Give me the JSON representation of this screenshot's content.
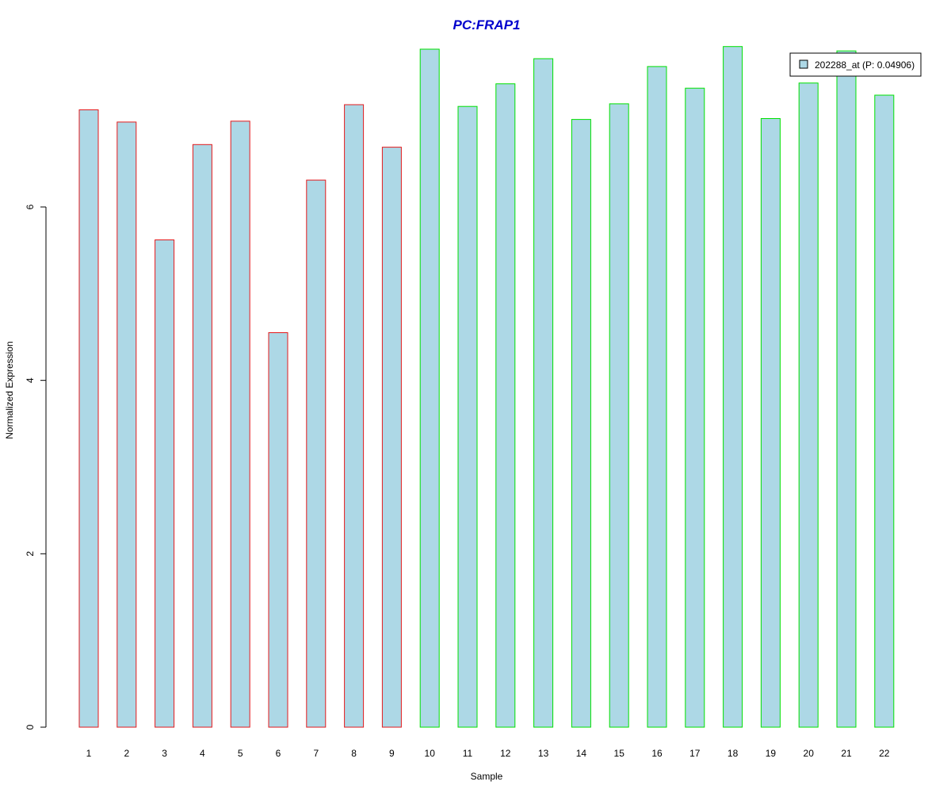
{
  "chart_data": {
    "type": "bar",
    "title": "PC:FRAP1",
    "xlabel": "Sample",
    "ylabel": "Normalized Expression",
    "ylim": [
      0,
      7.8
    ],
    "yticks": [
      0,
      2,
      4,
      6
    ],
    "categories": [
      "1",
      "2",
      "3",
      "4",
      "5",
      "6",
      "7",
      "8",
      "9",
      "10",
      "11",
      "12",
      "13",
      "14",
      "15",
      "16",
      "17",
      "18",
      "19",
      "20",
      "21",
      "22"
    ],
    "series": [
      {
        "name": "202288_at (P: 0.04906)",
        "values": [
          7.12,
          6.98,
          5.62,
          6.72,
          6.99,
          4.55,
          6.31,
          7.18,
          6.69,
          7.82,
          7.16,
          7.42,
          7.71,
          7.01,
          7.19,
          7.62,
          7.37,
          7.85,
          7.02,
          7.43,
          7.8,
          7.29
        ],
        "groups": [
          0,
          0,
          0,
          0,
          0,
          0,
          0,
          0,
          0,
          1,
          1,
          1,
          1,
          1,
          1,
          1,
          1,
          1,
          1,
          1,
          1,
          1
        ]
      }
    ],
    "group_colors": [
      "#e31a1c",
      "#00e000"
    ],
    "bar_fill": "#add8e6",
    "title_color": "#0000cd",
    "legend": {
      "position": "top-right",
      "label": "202288_at (P: 0.04906)"
    },
    "grid": false
  }
}
